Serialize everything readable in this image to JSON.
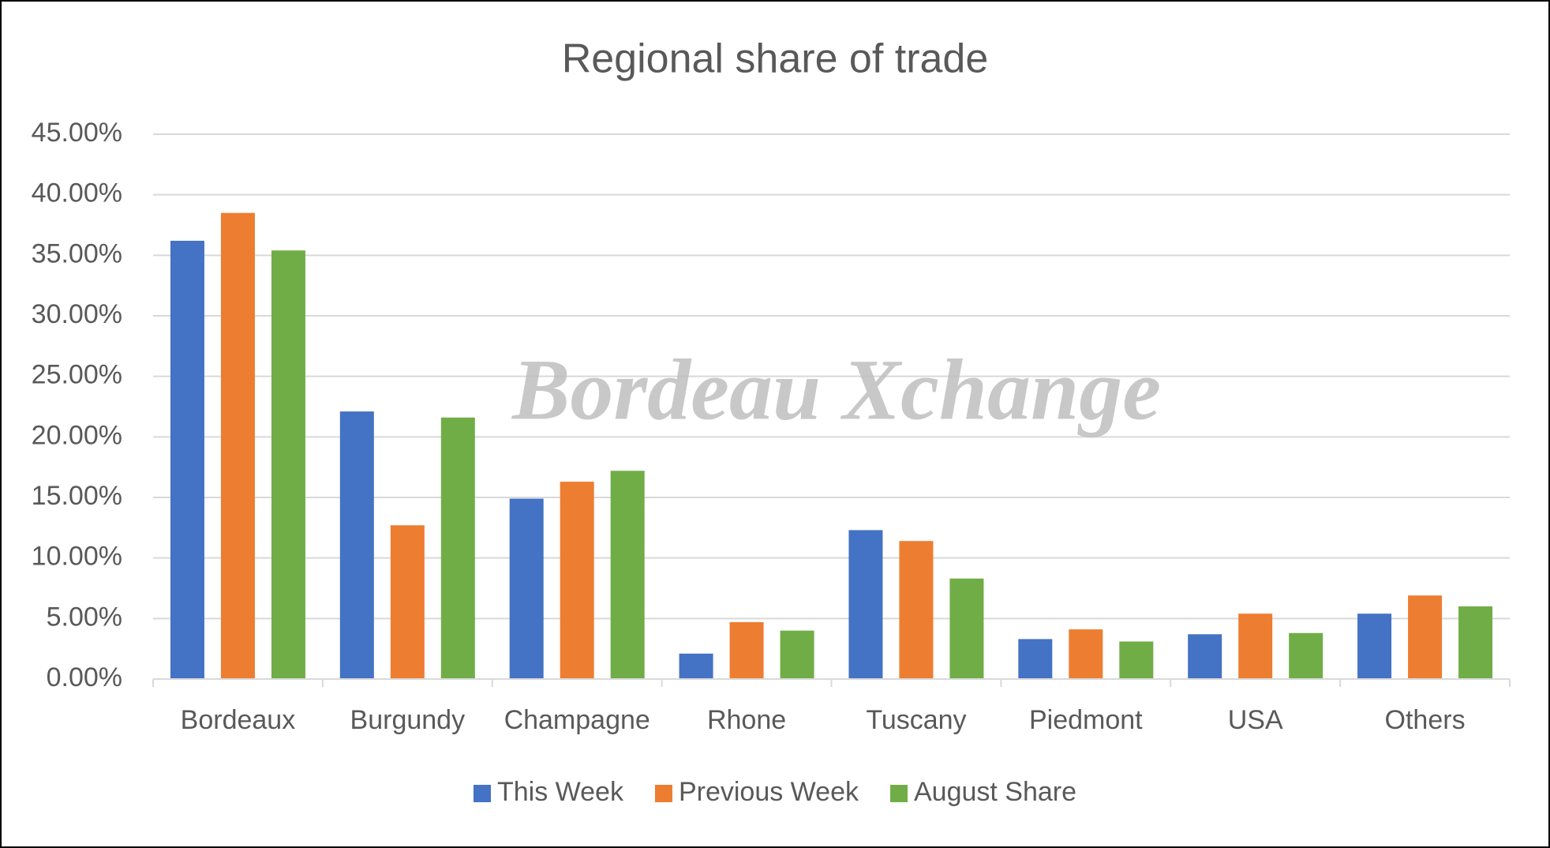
{
  "chart_data": {
    "type": "bar",
    "title": "Regional share of trade",
    "watermark": "Bordeau Xchange",
    "categories": [
      "Bordeaux",
      "Burgundy",
      "Champagne",
      "Rhone",
      "Tuscany",
      "Piedmont",
      "USA",
      "Others"
    ],
    "series": [
      {
        "name": "This Week",
        "color": "#4472c4",
        "values": [
          36.2,
          22.1,
          14.9,
          2.1,
          12.3,
          3.3,
          3.7,
          5.4
        ]
      },
      {
        "name": "Previous Week",
        "color": "#ed7d31",
        "values": [
          38.5,
          12.7,
          16.3,
          4.7,
          11.4,
          4.1,
          5.4,
          6.9
        ]
      },
      {
        "name": "August Share",
        "color": "#70ad47",
        "values": [
          35.4,
          21.6,
          17.2,
          4.0,
          8.3,
          3.1,
          3.8,
          6.0
        ]
      }
    ],
    "ylim": [
      0,
      45
    ],
    "yticks": [
      {
        "value": 0,
        "label": "0.00%"
      },
      {
        "value": 5,
        "label": "5.00%"
      },
      {
        "value": 10,
        "label": "10.00%"
      },
      {
        "value": 15,
        "label": "15.00%"
      },
      {
        "value": 20,
        "label": "20.00%"
      },
      {
        "value": 25,
        "label": "25.00%"
      },
      {
        "value": 30,
        "label": "30.00%"
      },
      {
        "value": 35,
        "label": "35.00%"
      },
      {
        "value": 40,
        "label": "40.00%"
      },
      {
        "value": 45,
        "label": "45.00%"
      }
    ],
    "grid": true,
    "legend": "bottom"
  }
}
